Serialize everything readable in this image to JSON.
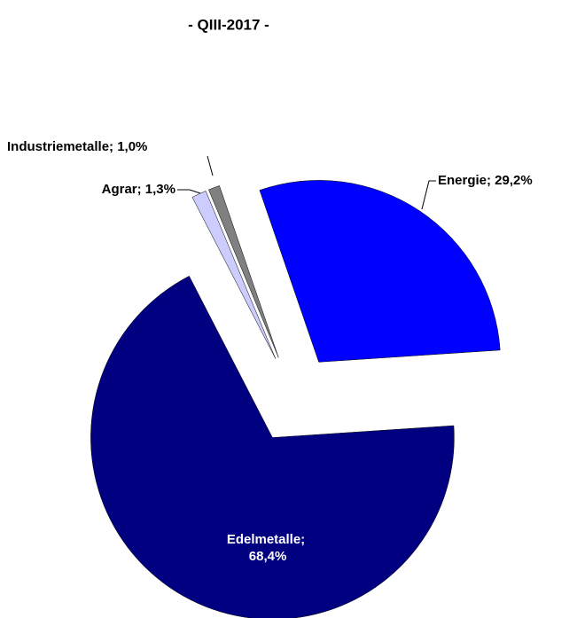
{
  "chart_data": {
    "type": "pie",
    "title": "- QIII-2017 -",
    "values": [
      29.2,
      68.4,
      1.3,
      1.0
    ],
    "value_labels": [
      "Energie; 29,2%",
      "Edelmetalle; 68,4%",
      "Agrar; 1,3%",
      "Industriemetalle; 1,0%"
    ],
    "colors": [
      "#0000ff",
      "#000080",
      "#ccccff",
      "#808080"
    ]
  }
}
